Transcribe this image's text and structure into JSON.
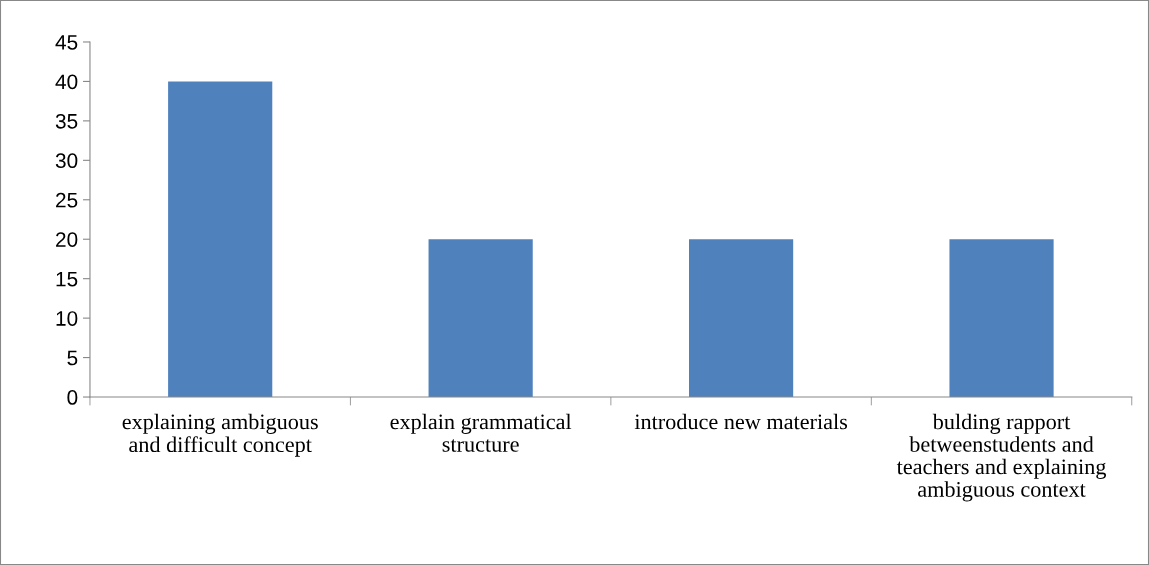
{
  "chart_data": {
    "type": "bar",
    "categories": [
      "explaining ambiguous\nand difficult concept",
      "explain grammatical\nstructure",
      "introduce new materials",
      "bulding rapport\nbetweenstudents and\nteachers and explaining\nambiguous context"
    ],
    "values": [
      40,
      20,
      20,
      20
    ],
    "color": "#4f81bd",
    "ylim": [
      0,
      45
    ],
    "yticks": [
      0,
      5,
      10,
      15,
      20,
      25,
      30,
      35,
      40,
      45
    ],
    "grid": false,
    "legend": false
  }
}
